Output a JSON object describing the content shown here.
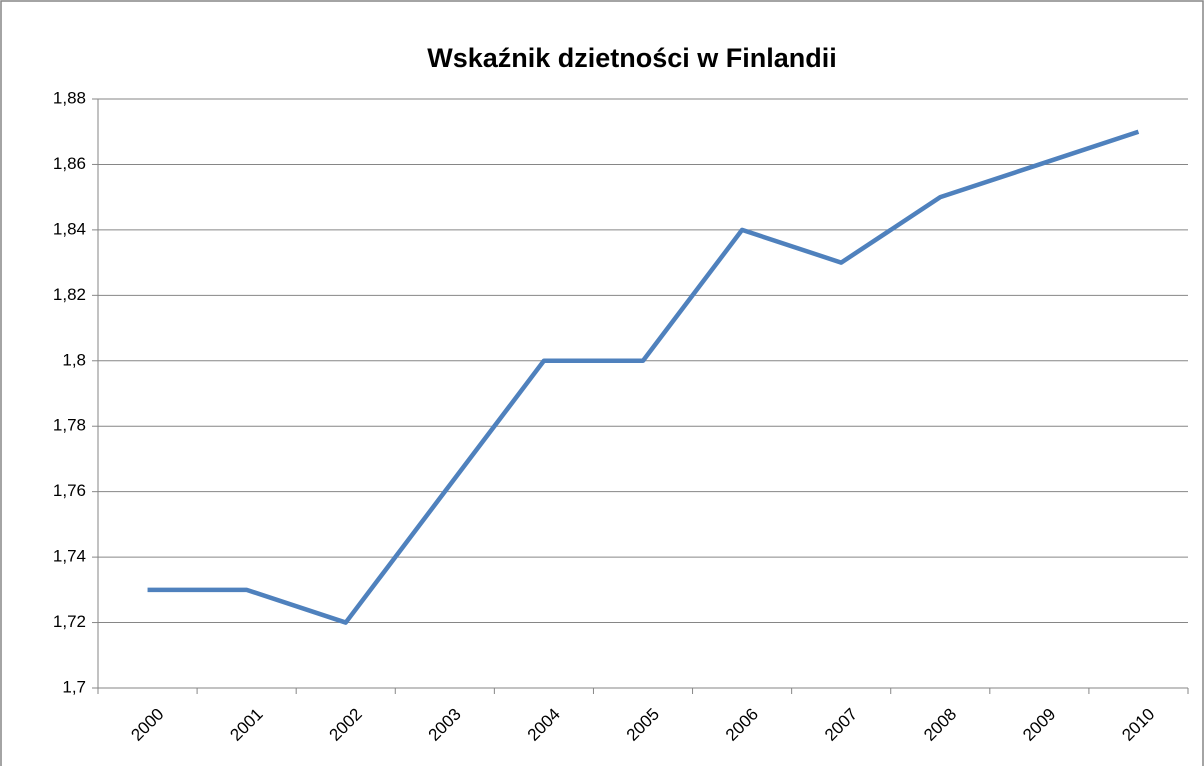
{
  "chart_data": {
    "type": "line",
    "title": "Wskaźnik dzietności w Finlandii",
    "categories": [
      "2000",
      "2001",
      "2002",
      "2003",
      "2004",
      "2005",
      "2006",
      "2007",
      "2008",
      "2009",
      "2010"
    ],
    "series": [
      {
        "name": "Wskaźnik dzietności",
        "color": "#4f81bd",
        "values": [
          1.73,
          1.73,
          1.72,
          1.76,
          1.8,
          1.8,
          1.84,
          1.83,
          1.85,
          1.86,
          1.87
        ]
      }
    ],
    "ylim": [
      1.7,
      1.88
    ],
    "yticks": [
      {
        "value": 1.7,
        "label": "1,7"
      },
      {
        "value": 1.72,
        "label": "1,72"
      },
      {
        "value": 1.74,
        "label": "1,74"
      },
      {
        "value": 1.76,
        "label": "1,76"
      },
      {
        "value": 1.78,
        "label": "1,78"
      },
      {
        "value": 1.8,
        "label": "1,8"
      },
      {
        "value": 1.82,
        "label": "1,82"
      },
      {
        "value": 1.84,
        "label": "1,84"
      },
      {
        "value": 1.86,
        "label": "1,86"
      },
      {
        "value": 1.88,
        "label": "1,88"
      }
    ],
    "grid": true
  }
}
